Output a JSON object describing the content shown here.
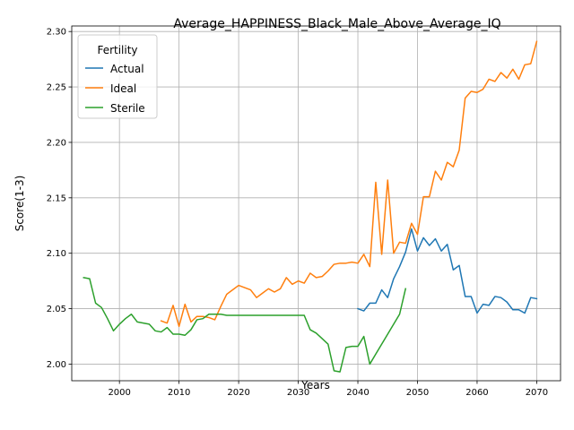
{
  "chart_data": {
    "type": "line",
    "title": "Average_HAPPINESS_Black_Male_Above_Average_IQ",
    "xlabel": "Years",
    "ylabel": "Score(1-3)",
    "xlim": [
      1992,
      2074
    ],
    "ylim": [
      1.985,
      2.305
    ],
    "xticks": [
      2000,
      2010,
      2020,
      2030,
      2040,
      2050,
      2060,
      2070
    ],
    "yticks": [
      2.0,
      2.05,
      2.1,
      2.15,
      2.2,
      2.25,
      2.3
    ],
    "ytick_labels": [
      "2.00",
      "2.05",
      "2.10",
      "2.15",
      "2.20",
      "2.25",
      "2.30"
    ],
    "grid": true,
    "legend": {
      "title": "Fertility",
      "placement": "top-left"
    },
    "series": [
      {
        "name": "Actual",
        "color": "#1f77b4",
        "x": [
          2040,
          2041,
          2042,
          2043,
          2044,
          2045,
          2046,
          2047,
          2048,
          2049,
          2050,
          2051,
          2052,
          2053,
          2054,
          2055,
          2056,
          2057,
          2058,
          2059,
          2060,
          2061,
          2062,
          2063,
          2064,
          2065,
          2066,
          2067,
          2068,
          2069,
          2070
        ],
        "y": [
          2.05,
          2.048,
          2.055,
          2.055,
          2.067,
          2.06,
          2.077,
          2.088,
          2.101,
          2.122,
          2.102,
          2.114,
          2.107,
          2.113,
          2.102,
          2.108,
          2.085,
          2.089,
          2.061,
          2.061,
          2.046,
          2.054,
          2.053,
          2.061,
          2.06,
          2.056,
          2.049,
          2.049,
          2.046,
          2.06,
          2.059
        ]
      },
      {
        "name": "Ideal",
        "color": "#ff7f0e",
        "x": [
          2007,
          2008,
          2009,
          2010,
          2011,
          2012,
          2013,
          2014,
          2015,
          2016,
          2017,
          2018,
          2019,
          2020,
          2021,
          2022,
          2023,
          2024,
          2025,
          2026,
          2027,
          2028,
          2029,
          2030,
          2031,
          2032,
          2033,
          2034,
          2035,
          2036,
          2037,
          2038,
          2039,
          2040,
          2041,
          2042,
          2043,
          2044,
          2045,
          2046,
          2047,
          2048,
          2049,
          2050,
          2051,
          2052,
          2053,
          2054,
          2055,
          2056,
          2057,
          2058,
          2059,
          2060,
          2061,
          2062,
          2063,
          2064,
          2065,
          2066,
          2067,
          2068,
          2069,
          2070
        ],
        "y": [
          2.039,
          2.037,
          2.053,
          2.034,
          2.054,
          2.038,
          2.043,
          2.043,
          2.042,
          2.04,
          2.052,
          2.063,
          2.067,
          2.071,
          2.069,
          2.067,
          2.06,
          2.064,
          2.068,
          2.065,
          2.068,
          2.078,
          2.072,
          2.075,
          2.073,
          2.082,
          2.078,
          2.079,
          2.084,
          2.09,
          2.091,
          2.091,
          2.092,
          2.091,
          2.099,
          2.088,
          2.164,
          2.099,
          2.166,
          2.1,
          2.11,
          2.109,
          2.127,
          2.117,
          2.151,
          2.151,
          2.174,
          2.166,
          2.182,
          2.178,
          2.193,
          2.24,
          2.246,
          2.245,
          2.248,
          2.257,
          2.255,
          2.263,
          2.258,
          2.266,
          2.257,
          2.27,
          2.271,
          2.291
        ]
      },
      {
        "name": "Sterile",
        "color": "#2ca02c",
        "x": [
          1994,
          1995,
          1996,
          1997,
          1998,
          1999,
          2000,
          2001,
          2002,
          2003,
          2004,
          2005,
          2006,
          2007,
          2008,
          2009,
          2010,
          2011,
          2012,
          2013,
          2014,
          2015,
          2016,
          2017,
          2018,
          2019,
          2020,
          2021,
          2022,
          2023,
          2024,
          2025,
          2026,
          2027,
          2028,
          2029,
          2030,
          2031,
          2032,
          2033,
          2034,
          2035,
          2036,
          2037,
          2038,
          2039,
          2040,
          2041,
          2042,
          2043,
          2044,
          2045,
          2046,
          2047,
          2048
        ],
        "y": [
          2.078,
          2.077,
          2.055,
          2.051,
          2.041,
          2.03,
          2.036,
          2.041,
          2.045,
          2.038,
          2.037,
          2.036,
          2.03,
          2.029,
          2.033,
          2.027,
          2.027,
          2.026,
          2.031,
          2.04,
          2.041,
          2.045,
          2.045,
          2.045,
          2.044,
          2.044,
          2.044,
          2.044,
          2.044,
          2.044,
          2.044,
          2.044,
          2.044,
          2.044,
          2.044,
          2.044,
          2.044,
          2.044,
          2.031,
          2.028,
          2.023,
          2.018,
          1.994,
          1.993,
          2.015,
          2.016,
          2.016,
          2.025,
          2.0,
          2.009,
          2.018,
          2.027,
          2.036,
          2.045,
          2.068
        ]
      }
    ]
  }
}
